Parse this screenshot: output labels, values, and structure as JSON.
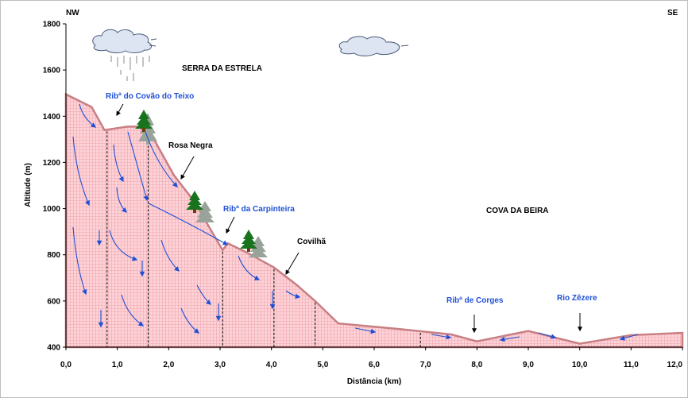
{
  "direction": {
    "left": "NW",
    "right": "SE"
  },
  "axes": {
    "ylabel": "Altitude (m)",
    "xlabel": "Distância (km)",
    "y_ticks": [
      "400",
      "600",
      "800",
      "1000",
      "1200",
      "1400",
      "1600",
      "1800"
    ],
    "x_ticks": [
      "0,0",
      "1,0",
      "2,0",
      "3,0",
      "4,0",
      "5,0",
      "6,0",
      "7,0",
      "8,0",
      "9,0",
      "10,0",
      "11,0",
      "12,0"
    ]
  },
  "regions": {
    "serra": "SERRA DA ESTRELA",
    "cova": "COVA DA BEIRA"
  },
  "features": {
    "covao": "Ribª do Covão do Teixo",
    "rosa": "Rosa Negra",
    "carpinteira": "Ribª da Carpinteira",
    "covilha": "Covilhã",
    "corges": "Ribª de Corges",
    "zezere": "Rio Zêzere"
  },
  "chart_data": {
    "type": "area",
    "xlim": [
      0,
      12
    ],
    "ylim": [
      400,
      1800
    ],
    "profile": [
      [
        0.0,
        1495
      ],
      [
        0.5,
        1440
      ],
      [
        0.75,
        1340
      ],
      [
        1.2,
        1355
      ],
      [
        1.4,
        1355
      ],
      [
        1.65,
        1325
      ],
      [
        2.1,
        1145
      ],
      [
        2.5,
        1030
      ],
      [
        2.8,
        915
      ],
      [
        3.05,
        820
      ],
      [
        3.15,
        850
      ],
      [
        3.5,
        812
      ],
      [
        4.05,
        745
      ],
      [
        4.5,
        668
      ],
      [
        4.85,
        600
      ],
      [
        5.3,
        503
      ],
      [
        6.5,
        478
      ],
      [
        7.5,
        455
      ],
      [
        8.0,
        425
      ],
      [
        9.0,
        470
      ],
      [
        10.0,
        415
      ],
      [
        11.0,
        452
      ],
      [
        12.0,
        462
      ]
    ],
    "dashed_lines_x": [
      0.8,
      1.6,
      3.05,
      4.05,
      4.85,
      6.9
    ],
    "grid": false
  },
  "colors": {
    "fill": "#fcd3d8",
    "fill_grid": "#f3a6ae",
    "outline": "#c77f83",
    "arrow": "#1f4fd6",
    "tree": "#17741d",
    "tree_shadow": "#9aa39a",
    "cloud_edge": "#4a5a7a"
  }
}
